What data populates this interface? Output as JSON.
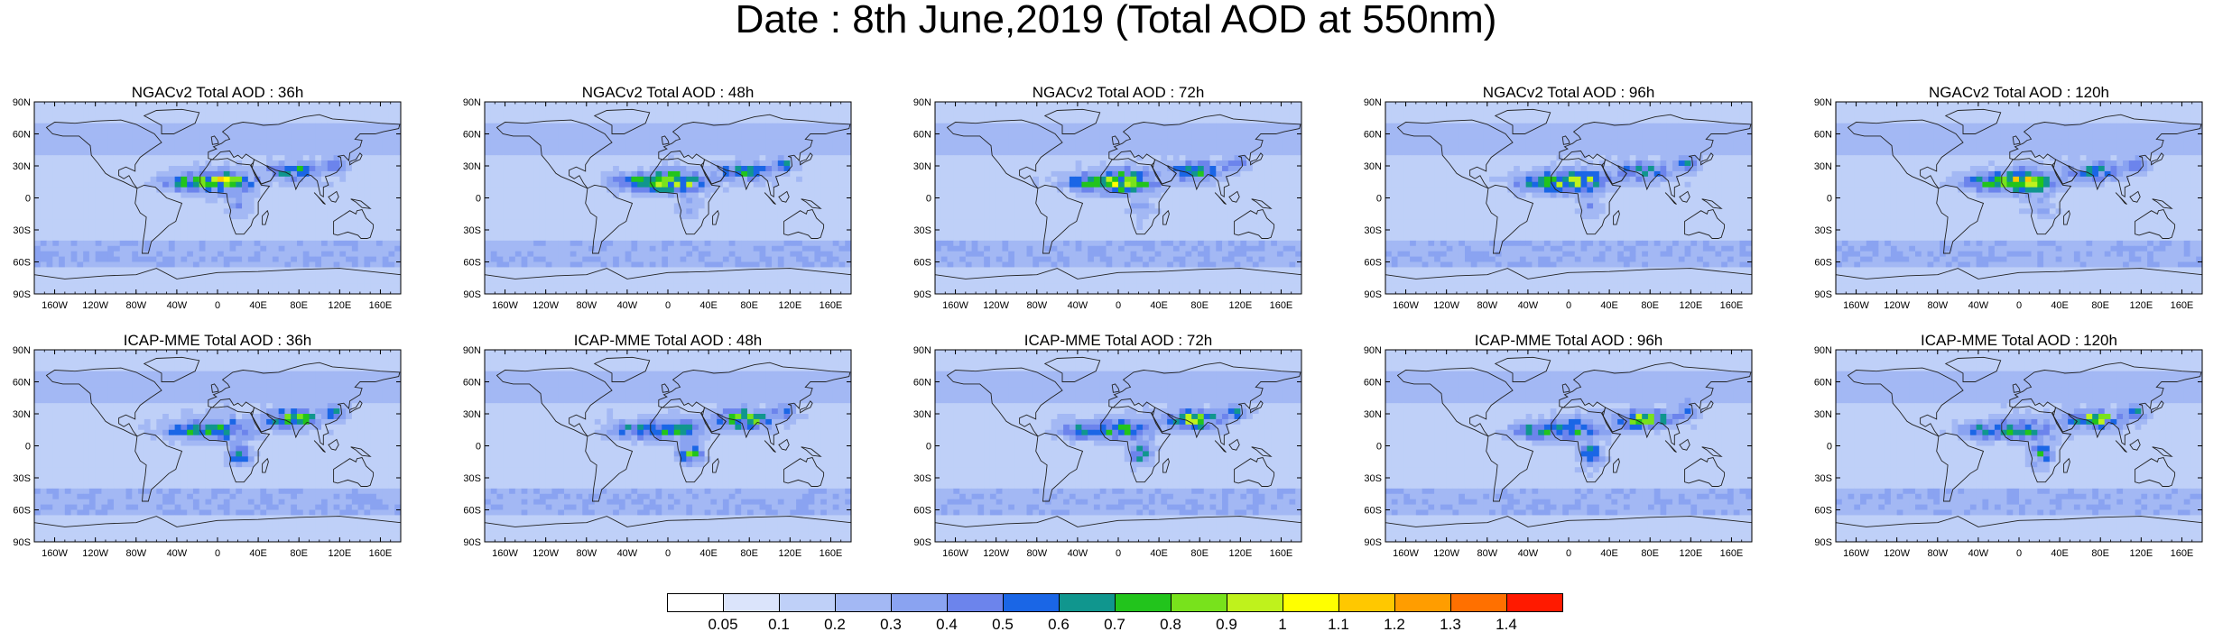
{
  "title": "Date : 8th June,2019 (Total AOD at 550nm)",
  "map": {
    "lat_labels": [
      "90N",
      "60N",
      "30N",
      "0",
      "30S",
      "60S",
      "90S"
    ],
    "lon_labels": [
      "160W",
      "120W",
      "80W",
      "40W",
      "0",
      "40E",
      "80E",
      "120E",
      "160E"
    ]
  },
  "panels": [
    {
      "title": "NGACv2 Total AOD : 36h"
    },
    {
      "title": "NGACv2 Total AOD : 48h"
    },
    {
      "title": "NGACv2 Total AOD : 72h"
    },
    {
      "title": "NGACv2 Total AOD : 96h"
    },
    {
      "title": "NGACv2 Total AOD : 120h"
    },
    {
      "title": "ICAP-MME Total AOD : 36h"
    },
    {
      "title": "ICAP-MME Total AOD : 48h"
    },
    {
      "title": "ICAP-MME Total AOD : 72h"
    },
    {
      "title": "ICAP-MME Total AOD : 96h"
    },
    {
      "title": "ICAP-MME Total AOD : 120h"
    }
  ],
  "colorbar": {
    "labels": [
      "0.05",
      "0.1",
      "0.2",
      "0.3",
      "0.4",
      "0.5",
      "0.6",
      "0.7",
      "0.8",
      "0.9",
      "1",
      "1.1",
      "1.2",
      "1.3",
      "1.4"
    ],
    "colors": [
      "#ffffff",
      "#dbe4fb",
      "#bfd0f8",
      "#a3b8f4",
      "#8aa3f1",
      "#6c84ec",
      "#1a66e6",
      "#10968e",
      "#22c41c",
      "#78e21c",
      "#bff21c",
      "#ffff00",
      "#ffc800",
      "#ff9d00",
      "#ff7000",
      "#ff1a00"
    ]
  }
}
